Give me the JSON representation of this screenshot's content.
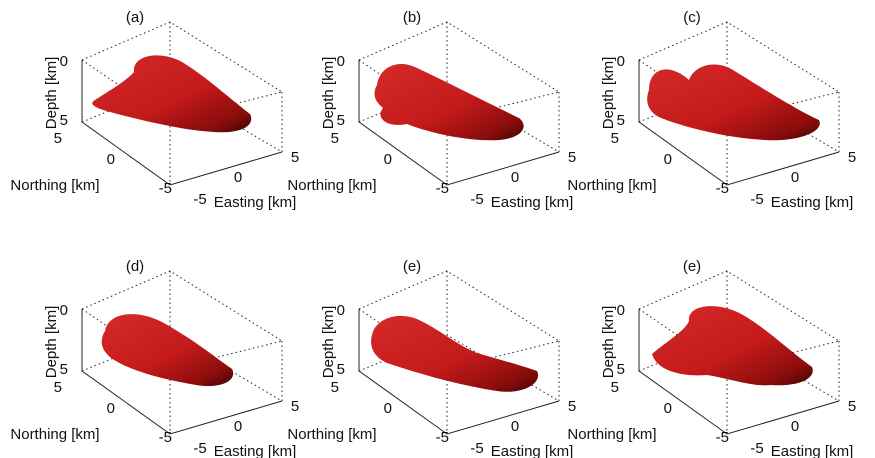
{
  "panels": [
    {
      "label": "(a)",
      "depth_label": "Depth [km]",
      "northing_label": "Northing [km]",
      "easting_label": "Easting [km]",
      "depth_ticks": [
        0,
        5
      ],
      "northing_ticks": [
        5,
        0,
        -5
      ],
      "easting_ticks": [
        -5,
        0,
        5
      ]
    },
    {
      "label": "(b)",
      "depth_label": "Depth [km]",
      "northing_label": "Northing [km]",
      "easting_label": "Easting [km]",
      "depth_ticks": [
        0,
        5
      ],
      "northing_ticks": [
        5,
        0,
        -5
      ],
      "easting_ticks": [
        -5,
        0,
        5
      ]
    },
    {
      "label": "(c)",
      "depth_label": "Depth [km]",
      "northing_label": "Northing [km]",
      "easting_label": "Easting [km]",
      "depth_ticks": [
        0,
        5
      ],
      "northing_ticks": [
        5,
        0,
        -5
      ],
      "easting_ticks": [
        -5,
        0,
        5
      ]
    },
    {
      "label": "(d)",
      "depth_label": "Depth [km]",
      "northing_label": "Northing [km]",
      "easting_label": "Easting [km]",
      "depth_ticks": [
        0,
        5
      ],
      "northing_ticks": [
        5,
        0,
        -5
      ],
      "easting_ticks": [
        -5,
        0,
        5
      ]
    },
    {
      "label": "(e)",
      "depth_label": "Depth [km]",
      "northing_label": "Northing [km]",
      "easting_label": "Easting [km]",
      "depth_ticks": [
        0,
        5
      ],
      "northing_ticks": [
        5,
        0,
        -5
      ],
      "easting_ticks": [
        -5,
        0,
        5
      ]
    },
    {
      "label": "(e)",
      "depth_label": "Depth [km]",
      "northing_label": "Northing [km]",
      "easting_label": "Easting [km]",
      "depth_ticks": [
        0,
        5
      ],
      "northing_ticks": [
        5,
        0,
        -5
      ],
      "easting_ticks": [
        -5,
        0,
        5
      ]
    }
  ]
}
